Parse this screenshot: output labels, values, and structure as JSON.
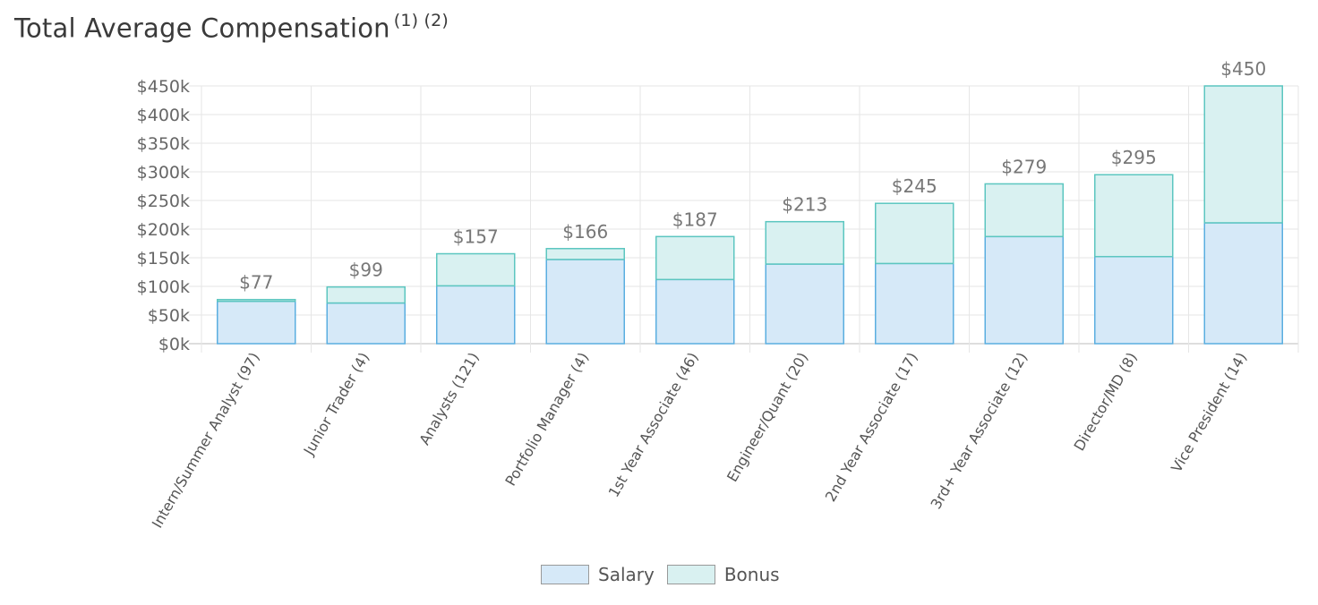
{
  "header": {
    "title": "Total Average Compensation",
    "footnotes": "(1) (2)"
  },
  "chart_data": {
    "type": "bar",
    "stacked": true,
    "categories": [
      "Intern/Summer Analyst (97)",
      "Junior Trader (4)",
      "Analysts (121)",
      "Portfolio Manager (4)",
      "1st Year Associate (46)",
      "Engineer/Quant (20)",
      "2nd Year Associate (17)",
      "3rd+ Year Associate (12)",
      "Director/MD (8)",
      "Vice President (14)"
    ],
    "series": [
      {
        "name": "Salary",
        "values": [
          74,
          71,
          101,
          147,
          112,
          139,
          140,
          187,
          152,
          211
        ],
        "fill": "#d6e9f8",
        "stroke": "#5aaee0"
      },
      {
        "name": "Bonus",
        "values": [
          3,
          28,
          56,
          19,
          75,
          74,
          105,
          92,
          143,
          239
        ],
        "fill": "#d9f1f1",
        "stroke": "#5cc6c0"
      }
    ],
    "total_labels": [
      "$77",
      "$99",
      "$157",
      "$166",
      "$187",
      "$213",
      "$245",
      "$279",
      "$295",
      "$450"
    ],
    "y_ticks": [
      "$0k",
      "$50k",
      "$100k",
      "$150k",
      "$200k",
      "$250k",
      "$300k",
      "$350k",
      "$400k",
      "$450k"
    ],
    "ylim": [
      0,
      450
    ],
    "grid": true,
    "legend_position": "bottom-center"
  }
}
